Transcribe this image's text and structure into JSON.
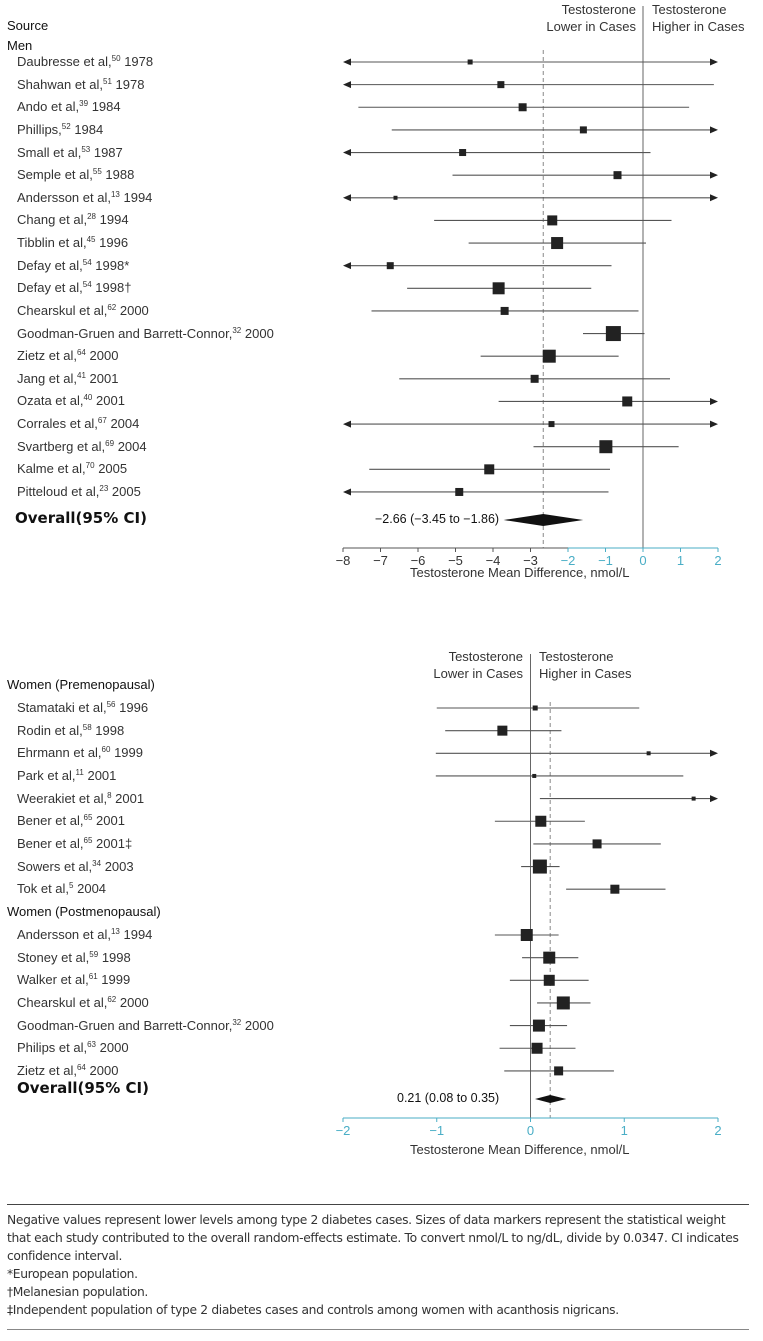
{
  "colors": {
    "marker": "#222222",
    "line": "#555555",
    "axis_teal": "#4aaec6",
    "dashed": "#888888"
  },
  "chart_data": [
    {
      "type": "forest",
      "source_header": "Source",
      "group_label": "Men",
      "direction_left": [
        "Testosterone",
        "Lower in Cases"
      ],
      "direction_right": [
        "Testosterone",
        "Higher in Cases"
      ],
      "xlabel": "Testosterone Mean Difference, nmol/L",
      "xlim": [
        -8,
        2
      ],
      "xticks": [
        "−8",
        "−7",
        "−6",
        "−5",
        "−4",
        "−3",
        "−2",
        "−1",
        "0",
        "1",
        "2"
      ],
      "xtick_values": [
        -8,
        -7,
        -6,
        -5,
        -4,
        -3,
        -2,
        -1,
        0,
        1,
        2
      ],
      "reference_line": 0,
      "studies": [
        {
          "name": "Daubresse et al,",
          "ref": "50",
          "year": "1978",
          "estimate": -4.61,
          "lo": null,
          "hi": null,
          "arrow_left": true,
          "arrow_right": true,
          "weight": 5
        },
        {
          "name": "Shahwan et al,",
          "ref": "51",
          "year": "1978",
          "estimate": -3.79,
          "lo": null,
          "hi": 1.89,
          "arrow_left": true,
          "arrow_right": false,
          "weight": 7
        },
        {
          "name": "Ando et al,",
          "ref": "39",
          "year": "1984",
          "estimate": -3.21,
          "lo": -7.59,
          "hi": 1.23,
          "arrow_left": false,
          "arrow_right": false,
          "weight": 8
        },
        {
          "name": "Phillips,",
          "ref": "52",
          "year": "1984",
          "estimate": -1.59,
          "lo": -6.7,
          "hi": null,
          "arrow_left": false,
          "arrow_right": true,
          "weight": 7
        },
        {
          "name": "Small et al,",
          "ref": "53",
          "year": "1987",
          "estimate": -4.81,
          "lo": null,
          "hi": 0.2,
          "arrow_left": true,
          "arrow_right": false,
          "weight": 7
        },
        {
          "name": "Semple et al,",
          "ref": "55",
          "year": "1988",
          "estimate": -0.68,
          "lo": -5.08,
          "hi": null,
          "arrow_left": false,
          "arrow_right": true,
          "weight": 8
        },
        {
          "name": "Andersson et al,",
          "ref": "13",
          "year": "1994",
          "estimate": -6.6,
          "lo": null,
          "hi": null,
          "arrow_left": true,
          "arrow_right": true,
          "weight": 4
        },
        {
          "name": "Chang et al,",
          "ref": "28",
          "year": "1994",
          "estimate": -2.42,
          "lo": -5.57,
          "hi": 0.76,
          "arrow_left": false,
          "arrow_right": false,
          "weight": 10
        },
        {
          "name": "Tibblin et al,",
          "ref": "45",
          "year": "1996",
          "estimate": -2.29,
          "lo": -4.65,
          "hi": 0.08,
          "arrow_left": false,
          "arrow_right": false,
          "weight": 12
        },
        {
          "name": "Defay et al,",
          "ref": "54",
          "year": "1998*",
          "estimate": -6.74,
          "lo": null,
          "hi": -0.84,
          "arrow_left": true,
          "arrow_right": false,
          "weight": 7
        },
        {
          "name": "Defay et al,",
          "ref": "54",
          "year": "1998†",
          "estimate": -3.85,
          "lo": -6.29,
          "hi": -1.38,
          "arrow_left": false,
          "arrow_right": false,
          "weight": 12
        },
        {
          "name": "Chearskul et al,",
          "ref": "62",
          "year": "2000",
          "estimate": -3.69,
          "lo": -7.24,
          "hi": -0.12,
          "arrow_left": false,
          "arrow_right": false,
          "weight": 8
        },
        {
          "name": "Goodman-Gruen and Barrett-Connor,",
          "ref": "32",
          "year": "2000",
          "estimate": -0.79,
          "lo": -1.6,
          "hi": 0.04,
          "arrow_left": false,
          "arrow_right": false,
          "weight": 15
        },
        {
          "name": "Zietz et al,",
          "ref": "64",
          "year": "2000",
          "estimate": -2.5,
          "lo": -4.33,
          "hi": -0.65,
          "arrow_left": false,
          "arrow_right": false,
          "weight": 13
        },
        {
          "name": "Jang et al,",
          "ref": "41",
          "year": "2001",
          "estimate": -2.89,
          "lo": -6.5,
          "hi": 0.72,
          "arrow_left": false,
          "arrow_right": false,
          "weight": 8
        },
        {
          "name": "Ozata et al,",
          "ref": "40",
          "year": "2001",
          "estimate": -0.42,
          "lo": -3.85,
          "hi": null,
          "arrow_left": false,
          "arrow_right": true,
          "weight": 10
        },
        {
          "name": "Corrales et al,",
          "ref": "67",
          "year": "2004",
          "estimate": -2.44,
          "lo": null,
          "hi": null,
          "arrow_left": true,
          "arrow_right": true,
          "weight": 6
        },
        {
          "name": "Svartberg et al,",
          "ref": "69",
          "year": "2004",
          "estimate": -0.99,
          "lo": -2.92,
          "hi": 0.95,
          "arrow_left": false,
          "arrow_right": false,
          "weight": 13
        },
        {
          "name": "Kalme et al,",
          "ref": "70",
          "year": "2005",
          "estimate": -4.1,
          "lo": -7.3,
          "hi": -0.88,
          "arrow_left": false,
          "arrow_right": false,
          "weight": 10
        },
        {
          "name": "Pitteloud et al,",
          "ref": "23",
          "year": "2005",
          "estimate": -4.9,
          "lo": null,
          "hi": -0.92,
          "arrow_left": true,
          "arrow_right": false,
          "weight": 8
        }
      ],
      "overall": {
        "label": "Overall(95% CI)",
        "text": "−2.66 (−3.45 to −1.86)",
        "estimate": -2.66,
        "lo": -3.45,
        "hi": -1.86
      }
    },
    {
      "type": "forest",
      "direction_left": [
        "Testosterone",
        "Lower in Cases"
      ],
      "direction_right": [
        "Testosterone",
        "Higher in Cases"
      ],
      "xlabel": "Testosterone Mean Difference, nmol/L",
      "xlim": [
        -2,
        2
      ],
      "xticks": [
        "−2",
        "−1",
        "0",
        "1",
        "2"
      ],
      "xtick_values": [
        -2,
        -1,
        0,
        1,
        2
      ],
      "reference_line": 0,
      "groups": [
        {
          "label": "Women (Premenopausal)",
          "studies": [
            {
              "name": "Stamataki et al,",
              "ref": "56",
              "year": "1996",
              "estimate": 0.05,
              "lo": -1.0,
              "hi": 1.16,
              "arrow_left": false,
              "arrow_right": false,
              "weight": 5
            },
            {
              "name": "Rodin et al,",
              "ref": "58",
              "year": "1998",
              "estimate": -0.3,
              "lo": -0.91,
              "hi": 0.33,
              "arrow_left": false,
              "arrow_right": false,
              "weight": 10
            },
            {
              "name": "Ehrmann et al,",
              "ref": "60",
              "year": "1999",
              "estimate": 1.26,
              "lo": -1.01,
              "hi": null,
              "arrow_left": false,
              "arrow_right": true,
              "weight": 4
            },
            {
              "name": "Park et al,",
              "ref": "11",
              "year": "2001",
              "estimate": 0.04,
              "lo": -1.01,
              "hi": 1.63,
              "arrow_left": false,
              "arrow_right": false,
              "weight": 4
            },
            {
              "name": "Weerakiet et al,",
              "ref": "8",
              "year": "2001",
              "estimate": 1.74,
              "lo": 0.1,
              "hi": null,
              "arrow_left": false,
              "arrow_right": true,
              "weight": 4
            },
            {
              "name": "Bener et al,",
              "ref": "65",
              "year": "2001",
              "estimate": 0.11,
              "lo": -0.38,
              "hi": 0.58,
              "arrow_left": false,
              "arrow_right": false,
              "weight": 11
            },
            {
              "name": "Bener et al,",
              "ref": "65",
              "year": "2001‡",
              "estimate": 0.71,
              "lo": 0.03,
              "hi": 1.39,
              "arrow_left": false,
              "arrow_right": false,
              "weight": 9
            },
            {
              "name": "Sowers et al,",
              "ref": "34",
              "year": "2003",
              "estimate": 0.1,
              "lo": -0.1,
              "hi": 0.31,
              "arrow_left": false,
              "arrow_right": false,
              "weight": 14
            },
            {
              "name": "Tok et al,",
              "ref": "5",
              "year": "2004",
              "estimate": 0.9,
              "lo": 0.38,
              "hi": 1.44,
              "arrow_left": false,
              "arrow_right": false,
              "weight": 9
            }
          ]
        },
        {
          "label": "Women (Postmenopausal)",
          "studies": [
            {
              "name": "Andersson et al,",
              "ref": "13",
              "year": "1994",
              "estimate": -0.04,
              "lo": -0.38,
              "hi": 0.3,
              "arrow_left": false,
              "arrow_right": false,
              "weight": 12
            },
            {
              "name": "Stoney et al,",
              "ref": "59",
              "year": "1998",
              "estimate": 0.2,
              "lo": -0.09,
              "hi": 0.51,
              "arrow_left": false,
              "arrow_right": false,
              "weight": 12
            },
            {
              "name": "Walker et al,",
              "ref": "61",
              "year": "1999",
              "estimate": 0.2,
              "lo": -0.22,
              "hi": 0.62,
              "arrow_left": false,
              "arrow_right": false,
              "weight": 11
            },
            {
              "name": "Chearskul et al,",
              "ref": "62",
              "year": "2000",
              "estimate": 0.35,
              "lo": 0.07,
              "hi": 0.64,
              "arrow_left": false,
              "arrow_right": false,
              "weight": 13
            },
            {
              "name": "Goodman-Gruen and Barrett-Connor,",
              "ref": "32",
              "year": "2000",
              "estimate": 0.09,
              "lo": -0.22,
              "hi": 0.39,
              "arrow_left": false,
              "arrow_right": false,
              "weight": 12
            },
            {
              "name": "Philips et al,",
              "ref": "63",
              "year": "2000",
              "estimate": 0.07,
              "lo": -0.33,
              "hi": 0.48,
              "arrow_left": false,
              "arrow_right": false,
              "weight": 11
            },
            {
              "name": "Zietz et al,",
              "ref": "64",
              "year": "2000",
              "estimate": 0.3,
              "lo": -0.28,
              "hi": 0.89,
              "arrow_left": false,
              "arrow_right": false,
              "weight": 9
            }
          ]
        }
      ],
      "overall": {
        "label": "Overall(95% CI)",
        "text": "0.21 (0.08 to 0.35)",
        "estimate": 0.21,
        "lo": 0.08,
        "hi": 0.35
      }
    }
  ],
  "notes": [
    "Negative values represent lower levels among type 2 diabetes cases. Sizes of data markers represent the statistical weight that each study contributed to the overall random-effects estimate. To convert nmol/L to ng/dL, divide by 0.0347. CI indicates confidence interval.",
    "*European population.",
    "†Melanesian population.",
    "‡Independent population of type 2 diabetes cases and controls among women with acanthosis nigricans."
  ]
}
